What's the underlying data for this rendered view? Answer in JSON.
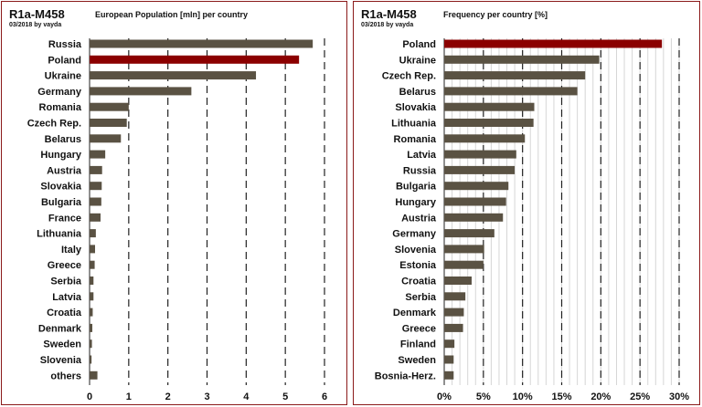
{
  "chart_data": [
    {
      "type": "bar",
      "orientation": "horizontal",
      "title": "R1a-M458",
      "subtitle": "European Population [mln] per country",
      "credit": "03/2018 by vayda",
      "categories": [
        "Russia",
        "Poland",
        "Ukraine",
        "Germany",
        "Romania",
        "Czech Rep.",
        "Belarus",
        "Hungary",
        "Austria",
        "Slovakia",
        "Bulgaria",
        "France",
        "Lithuania",
        "Italy",
        "Greece",
        "Serbia",
        "Latvia",
        "Croatia",
        "Denmark",
        "Sweden",
        "Slovenia",
        "others"
      ],
      "values": [
        5.7,
        5.35,
        4.25,
        2.6,
        1.0,
        0.95,
        0.8,
        0.4,
        0.32,
        0.31,
        0.3,
        0.28,
        0.16,
        0.14,
        0.13,
        0.1,
        0.1,
        0.08,
        0.07,
        0.06,
        0.05,
        0.2
      ],
      "highlight": "Poland",
      "xlim": [
        0,
        6
      ],
      "xticks": [
        "0",
        "1",
        "2",
        "3",
        "4",
        "5",
        "6"
      ],
      "bar_color": "#5a5243",
      "highlight_color": "#8b0000",
      "grid": "vertical dashed"
    },
    {
      "type": "bar",
      "orientation": "horizontal",
      "title": "R1a-M458",
      "subtitle": "Frequency per country [%]",
      "credit": "03/2018 by vayda",
      "categories": [
        "Poland",
        "Ukraine",
        "Czech Rep.",
        "Belarus",
        "Slovakia",
        "Lithuania",
        "Romania",
        "Latvia",
        "Russia",
        "Bulgaria",
        "Hungary",
        "Austria",
        "Germany",
        "Slovenia",
        "Estonia",
        "Croatia",
        "Serbia",
        "Denmark",
        "Greece",
        "Finland",
        "Sweden",
        "Bosnia-Herz."
      ],
      "values": [
        27.8,
        19.8,
        18.0,
        17.0,
        11.5,
        11.4,
        10.3,
        9.2,
        9.0,
        8.2,
        7.9,
        7.5,
        6.4,
        5.1,
        5.0,
        3.5,
        2.7,
        2.5,
        2.4,
        1.3,
        1.2,
        1.2
      ],
      "highlight": "Poland",
      "xlim": [
        0,
        30
      ],
      "xticks": [
        "0%",
        "5%",
        "10%",
        "15%",
        "20%",
        "25%",
        "30%"
      ],
      "bar_color": "#5a5243",
      "highlight_color": "#8b0000",
      "grid": "vertical dashed"
    }
  ]
}
